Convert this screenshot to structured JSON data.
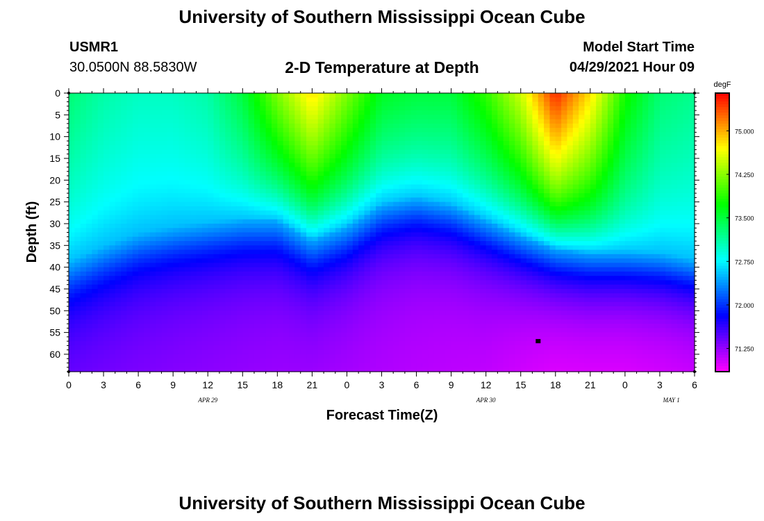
{
  "page": {
    "title_top": "University of Southern Mississippi Ocean Cube",
    "title_bottom": "University of Southern Mississippi Ocean Cube",
    "station_id": "USMR1",
    "station_coords": "30.0500N  88.5830W",
    "plot_title": "2-D Temperature at Depth",
    "model_start_label": "Model Start Time",
    "model_start_value": "04/29/2021 Hour 09"
  },
  "colors": {
    "background": "#ffffff",
    "marker": "#000000"
  },
  "chart_data": {
    "type": "heatmap",
    "title": "2-D Temperature at Depth",
    "xlabel": "Forecast Time(Z)",
    "ylabel": "Depth (ft)",
    "x_hours": [
      0,
      3,
      6,
      9,
      12,
      15,
      18,
      21,
      24,
      27,
      30,
      33,
      36,
      39,
      42,
      45,
      48,
      51,
      54
    ],
    "x_tick_labels": [
      "0",
      "3",
      "6",
      "9",
      "12",
      "15",
      "18",
      "21",
      "0",
      "3",
      "6",
      "9",
      "12",
      "15",
      "18",
      "21",
      "0",
      "3",
      "6"
    ],
    "date_labels": [
      {
        "hour": 12,
        "text": "APR 29"
      },
      {
        "hour": 36,
        "text": "APR 30"
      },
      {
        "hour": 52,
        "text": "MAY 1"
      }
    ],
    "depths_ft": [
      0,
      5,
      10,
      15,
      20,
      25,
      30,
      35,
      40,
      45,
      50,
      55,
      60
    ],
    "y_tick_labels": [
      "0",
      "5",
      "10",
      "15",
      "20",
      "25",
      "30",
      "35",
      "40",
      "45",
      "50",
      "55",
      "60"
    ],
    "xlim": [
      0,
      54
    ],
    "ylim": [
      0,
      64
    ],
    "colorbar": {
      "unit": "degF",
      "range": [
        70.85,
        75.65
      ],
      "ticks": [
        71.25,
        72.0,
        72.75,
        73.5,
        74.25,
        75.0
      ],
      "tick_labels": [
        "71.250",
        "72.000",
        "72.750",
        "73.500",
        "74.250",
        "75.000"
      ]
    },
    "thermocline_depth_ft": [
      [
        0,
        38.5
      ],
      [
        3,
        35
      ],
      [
        6,
        32
      ],
      [
        9,
        30.5
      ],
      [
        12,
        29.5
      ],
      [
        15,
        28.5
      ],
      [
        18,
        28.5
      ],
      [
        21,
        33
      ],
      [
        24,
        30
      ],
      [
        27,
        25
      ],
      [
        30,
        23.5
      ],
      [
        33,
        25
      ],
      [
        36,
        28.5
      ],
      [
        39,
        32
      ],
      [
        42,
        35
      ],
      [
        45,
        36
      ],
      [
        48,
        36
      ],
      [
        51,
        36.5
      ],
      [
        54,
        38
      ]
    ],
    "surface_temp_degF": [
      [
        0,
        73.3
      ],
      [
        3,
        73.1
      ],
      [
        6,
        73.0
      ],
      [
        9,
        73.0
      ],
      [
        12,
        73.1
      ],
      [
        15,
        73.5
      ],
      [
        18,
        74.2
      ],
      [
        21,
        74.8
      ],
      [
        24,
        74.2
      ],
      [
        27,
        73.6
      ],
      [
        30,
        73.5
      ],
      [
        33,
        73.5
      ],
      [
        36,
        73.9
      ],
      [
        39,
        74.5
      ],
      [
        42,
        75.5
      ],
      [
        45,
        74.8
      ],
      [
        48,
        73.8
      ],
      [
        51,
        73.3
      ],
      [
        54,
        73.2
      ]
    ],
    "bottom_temp_degF": [
      [
        0,
        71.35
      ],
      [
        6,
        71.3
      ],
      [
        12,
        71.25
      ],
      [
        18,
        71.2
      ],
      [
        24,
        71.15
      ],
      [
        30,
        71.1
      ],
      [
        36,
        71.05
      ],
      [
        42,
        70.9
      ],
      [
        48,
        70.9
      ],
      [
        54,
        70.95
      ]
    ],
    "marker": {
      "hour": 40.5,
      "depth_ft": 57
    }
  }
}
